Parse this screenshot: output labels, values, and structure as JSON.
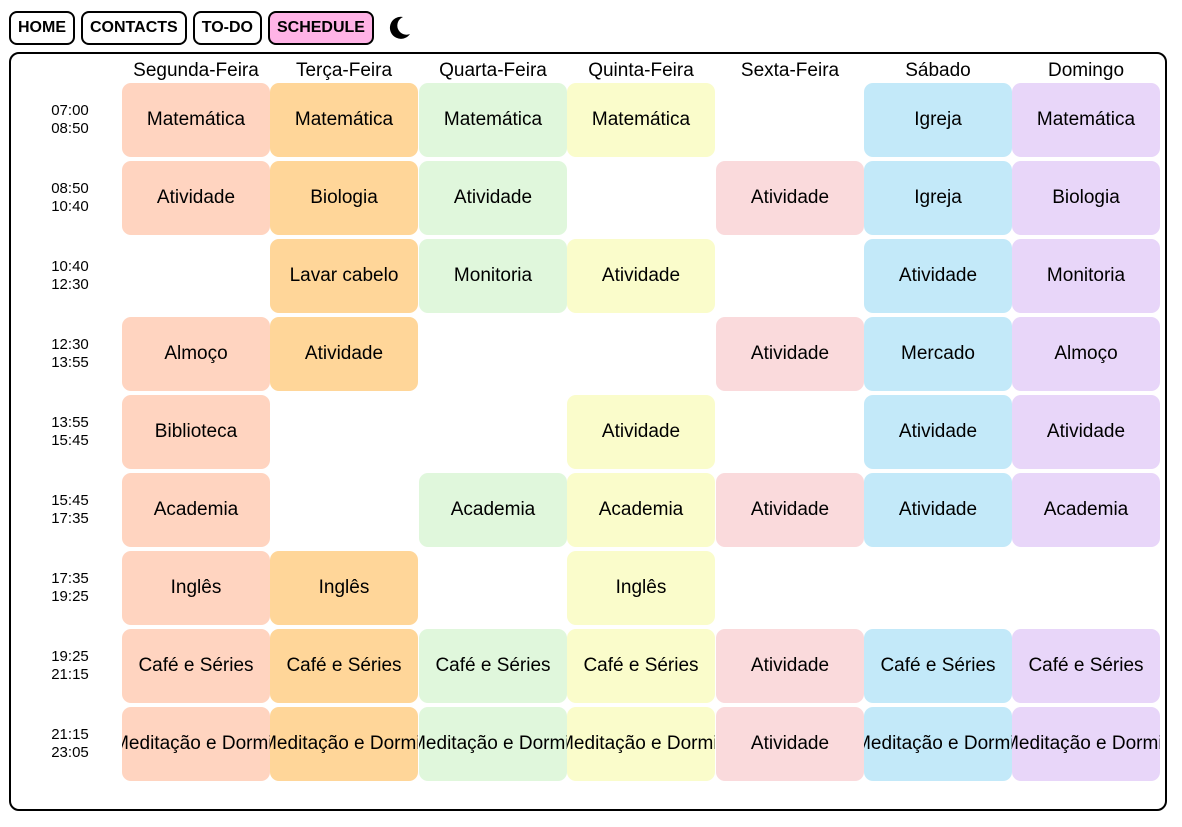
{
  "nav": {
    "items": [
      {
        "label": "HOME",
        "active": false
      },
      {
        "label": "CONTACTS",
        "active": false
      },
      {
        "label": "TO-DO",
        "active": false
      },
      {
        "label": "SCHEDULE",
        "active": true
      }
    ],
    "active_color": "#ffb3e6",
    "theme_icon": "moon-icon"
  },
  "schedule": {
    "days": [
      {
        "name": "Segunda-Feira",
        "color": "#ffd4c0"
      },
      {
        "name": "Terça-Feira",
        "color": "#ffd699"
      },
      {
        "name": "Quarta-Feira",
        "color": "#e0f7dc"
      },
      {
        "name": "Quinta-Feira",
        "color": "#fafccb"
      },
      {
        "name": "Sexta-Feira",
        "color": "#fadadc"
      },
      {
        "name": "Sábado",
        "color": "#c3e9f9"
      },
      {
        "name": "Domingo",
        "color": "#e8d6f9"
      }
    ],
    "slots": [
      {
        "start": "07:00",
        "end": "08:50"
      },
      {
        "start": "08:50",
        "end": "10:40"
      },
      {
        "start": "10:40",
        "end": "12:30"
      },
      {
        "start": "12:30",
        "end": "13:55"
      },
      {
        "start": "13:55",
        "end": "15:45"
      },
      {
        "start": "15:45",
        "end": "17:35"
      },
      {
        "start": "17:35",
        "end": "19:25"
      },
      {
        "start": "19:25",
        "end": "21:15"
      },
      {
        "start": "21:15",
        "end": "23:05"
      }
    ],
    "cells": [
      [
        "Matemática",
        "Matemática",
        "Matemática",
        "Matemática",
        "",
        "Igreja",
        "Matemática"
      ],
      [
        "Atividade",
        "Biologia",
        "Atividade",
        "",
        "Atividade",
        "Igreja",
        "Biologia"
      ],
      [
        "",
        "Lavar cabelo",
        "Monitoria",
        "Atividade",
        "",
        "Atividade",
        "Monitoria"
      ],
      [
        "Almoço",
        "Atividade",
        "",
        "",
        "Atividade",
        "Mercado",
        "Almoço"
      ],
      [
        "Biblioteca",
        "",
        "",
        "Atividade",
        "",
        "Atividade",
        "Atividade"
      ],
      [
        "Academia",
        "",
        "Academia",
        "Academia",
        "Atividade",
        "Atividade",
        "Academia"
      ],
      [
        "Inglês",
        "Inglês",
        "",
        "Inglês",
        "",
        "",
        ""
      ],
      [
        "Café e Séries",
        "Café e Séries",
        "Café e Séries",
        "Café e Séries",
        "Atividade",
        "Café e Séries",
        "Café e Séries"
      ],
      [
        "Meditação e Dormir",
        "Meditação e Dormir",
        "Meditação e Dormir",
        "Meditação e Dormir",
        "Atividade",
        "Meditação e Dormir",
        "Meditação e Dormir"
      ]
    ]
  }
}
